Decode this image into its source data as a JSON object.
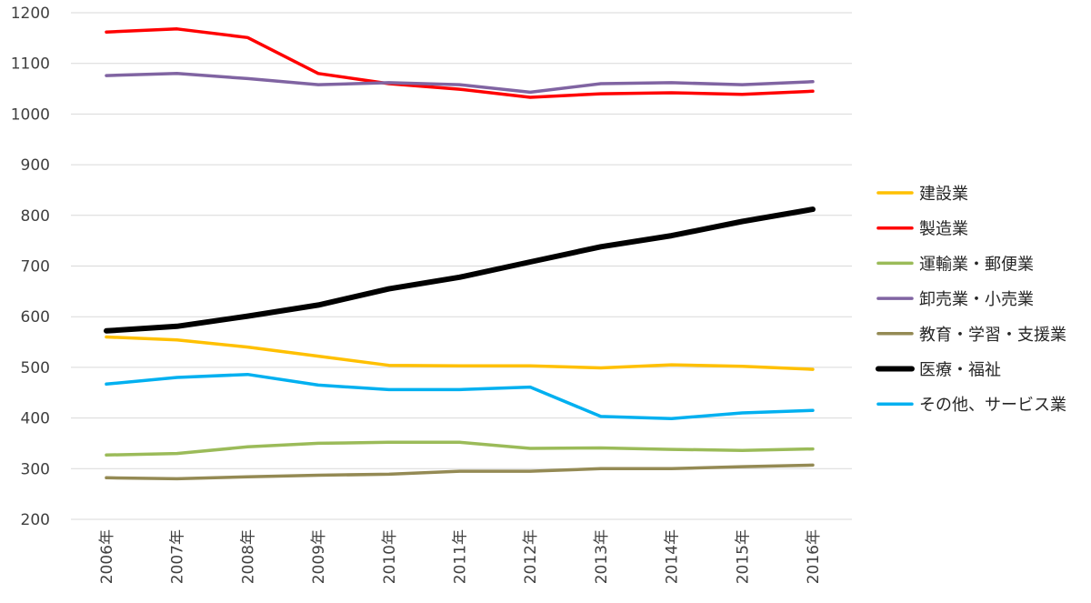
{
  "chart_data": {
    "type": "line",
    "title": "",
    "xlabel": "",
    "ylabel": "",
    "ylim": [
      200,
      1200
    ],
    "yticks": [
      200,
      300,
      400,
      500,
      600,
      700,
      800,
      900,
      1000,
      1100,
      1200
    ],
    "categories": [
      "2006年",
      "2007年",
      "2008年",
      "2009年",
      "2010年",
      "2011年",
      "2012年",
      "2013年",
      "2014年",
      "2015年",
      "2016年"
    ],
    "grid": "horizontal",
    "legend_position": "right",
    "series": [
      {
        "name": "建設業",
        "color": "#FFC000",
        "values": [
          560,
          554,
          540,
          522,
          504,
          503,
          503,
          499,
          505,
          502,
          496
        ]
      },
      {
        "name": "製造業",
        "color": "#FF0000",
        "values": [
          1162,
          1168,
          1151,
          1080,
          1060,
          1049,
          1033,
          1040,
          1042,
          1039,
          1045
        ]
      },
      {
        "name": "運輸業・郵便業",
        "color": "#9BBB59",
        "values": [
          327,
          330,
          343,
          350,
          352,
          352,
          340,
          341,
          338,
          336,
          339
        ]
      },
      {
        "name": "卸売業・小売業",
        "color": "#8064A2",
        "values": [
          1076,
          1080,
          1070,
          1058,
          1062,
          1058,
          1043,
          1060,
          1062,
          1058,
          1064
        ]
      },
      {
        "name": "教育・学習・支援業",
        "color": "#948A54",
        "values": [
          282,
          280,
          284,
          287,
          289,
          295,
          295,
          300,
          300,
          304,
          307
        ]
      },
      {
        "name": "医療・福祉",
        "color": "#000000",
        "values": [
          572,
          581,
          601,
          623,
          655,
          678,
          708,
          738,
          760,
          788,
          812
        ]
      },
      {
        "name": "その他、サービス業",
        "color": "#00B0F0",
        "values": [
          467,
          480,
          486,
          465,
          456,
          456,
          461,
          403,
          399,
          410,
          415
        ]
      }
    ]
  }
}
